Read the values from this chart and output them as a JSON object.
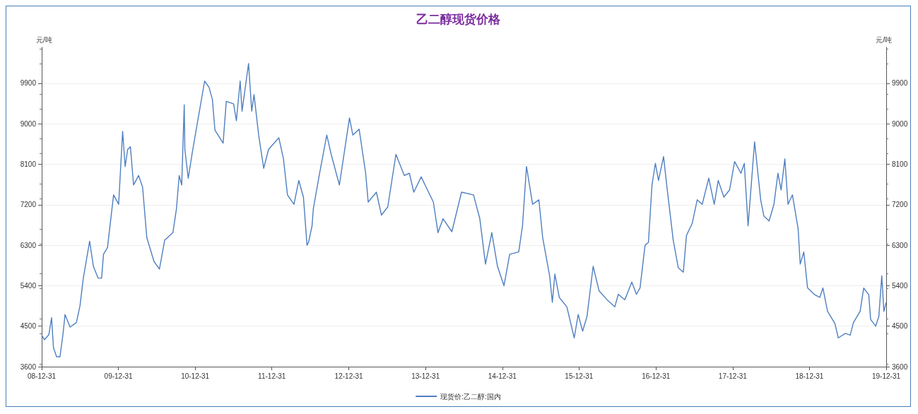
{
  "chart_data": {
    "type": "line",
    "title": "乙二醇现货价格",
    "ylabel": "元/吨",
    "y2label": "元/吨",
    "x": [
      "2008-12-31",
      "2009-01-13",
      "2009-02-03",
      "2009-02-16",
      "2009-02-25",
      "2009-03-12",
      "2009-03-28",
      "2009-04-12",
      "2009-04-21",
      "2009-05-15",
      "2009-06-14",
      "2009-07-01",
      "2009-07-17",
      "2009-08-16",
      "2009-09-03",
      "2009-09-25",
      "2009-10-12",
      "2009-10-21",
      "2009-11-09",
      "2009-12-08",
      "2010-01-01",
      "2010-01-20",
      "2010-02-01",
      "2010-02-13",
      "2010-02-26",
      "2010-03-13",
      "2010-04-06",
      "2010-04-25",
      "2010-05-15",
      "2010-06-18",
      "2010-07-14",
      "2010-08-08",
      "2010-09-16",
      "2010-10-03",
      "2010-10-16",
      "2010-10-28",
      "2010-11-09",
      "2010-11-12",
      "2010-11-28",
      "2010-12-18",
      "2011-01-08",
      "2011-02-14",
      "2011-03-07",
      "2011-03-23",
      "2011-04-04",
      "2011-05-13",
      "2011-05-28",
      "2011-07-02",
      "2011-07-15",
      "2011-08-02",
      "2011-08-11",
      "2011-09-11",
      "2011-09-26",
      "2011-10-07",
      "2011-10-29",
      "2011-11-22",
      "2011-12-15",
      "2012-02-02",
      "2012-02-24",
      "2012-03-14",
      "2012-04-14",
      "2012-05-07",
      "2012-05-29",
      "2012-06-15",
      "2012-06-22",
      "2012-07-09",
      "2012-07-15",
      "2012-08-12",
      "2012-09-17",
      "2012-10-08",
      "2012-11-16",
      "2013-01-03",
      "2013-01-19",
      "2013-02-18",
      "2013-03-21",
      "2013-04-02",
      "2013-05-11",
      "2013-06-04",
      "2013-07-04",
      "2013-08-12",
      "2013-09-21",
      "2013-10-15",
      "2013-11-05",
      "2013-12-10",
      "2014-02-06",
      "2014-02-28",
      "2014-03-24",
      "2014-05-05",
      "2014-06-20",
      "2014-08-16",
      "2014-09-15",
      "2014-10-12",
      "2014-11-11",
      "2014-12-08",
      "2015-01-08",
      "2015-02-04",
      "2015-03-19",
      "2015-04-06",
      "2015-04-25",
      "2015-05-24",
      "2015-06-23",
      "2015-07-11",
      "2015-08-13",
      "2015-08-26",
      "2015-09-07",
      "2015-09-28",
      "2015-11-03",
      "2015-12-08",
      "2015-12-27",
      "2016-01-17",
      "2016-02-07",
      "2016-03-07",
      "2016-04-04",
      "2016-05-12",
      "2016-06-18",
      "2016-07-05",
      "2016-07-27",
      "2016-08-05",
      "2016-09-07",
      "2016-09-29",
      "2016-10-16",
      "2016-11-09",
      "2016-11-25",
      "2016-12-12",
      "2016-12-28",
      "2017-01-12",
      "2017-02-05",
      "2017-02-20",
      "2017-03-23",
      "2017-04-16",
      "2017-05-10",
      "2017-05-25",
      "2017-06-21",
      "2017-07-15",
      "2017-08-08",
      "2017-09-08",
      "2017-10-04",
      "2017-10-23",
      "2017-11-19",
      "2017-12-16",
      "2018-01-09",
      "2018-02-08",
      "2018-02-24",
      "2018-03-14",
      "2018-04-14",
      "2018-05-13",
      "2018-05-28",
      "2018-06-22",
      "2018-07-15",
      "2018-08-03",
      "2018-08-18",
      "2018-09-05",
      "2018-09-20",
      "2018-10-11",
      "2018-11-07",
      "2018-11-17",
      "2018-12-04",
      "2018-12-22",
      "2019-01-25",
      "2019-02-18",
      "2019-03-05",
      "2019-03-27",
      "2019-05-01",
      "2019-05-17",
      "2019-06-20",
      "2019-07-13",
      "2019-07-28",
      "2019-08-29",
      "2019-09-15",
      "2019-10-09",
      "2019-10-18",
      "2019-11-11",
      "2019-11-26",
      "2019-12-10",
      "2019-12-20",
      "2019-12-31"
    ],
    "series": [
      {
        "name": "现货价:乙二醇:国内",
        "color": "#4f7fc0",
        "values": [
          4300,
          4200,
          4310,
          4690,
          4020,
          3820,
          3820,
          4350,
          4760,
          4480,
          4580,
          4950,
          5570,
          6390,
          5830,
          5570,
          5570,
          6100,
          6250,
          7420,
          7210,
          8830,
          8050,
          8430,
          8490,
          7640,
          7850,
          7590,
          6470,
          5940,
          5770,
          6410,
          6580,
          7110,
          7850,
          7640,
          9420,
          8430,
          7790,
          8380,
          8950,
          9950,
          9810,
          9540,
          8860,
          8570,
          9500,
          9440,
          9070,
          9950,
          9280,
          10340,
          9280,
          9650,
          8750,
          8010,
          8430,
          8690,
          8220,
          7420,
          7210,
          7740,
          7370,
          6300,
          6360,
          6730,
          7110,
          7850,
          8750,
          8320,
          7640,
          9130,
          8750,
          8880,
          7900,
          7260,
          7480,
          6970,
          7150,
          8320,
          7850,
          7900,
          7480,
          7820,
          7260,
          6580,
          6890,
          6600,
          7480,
          7420,
          6890,
          5880,
          6580,
          5830,
          5400,
          6100,
          6150,
          6730,
          8050,
          7210,
          7310,
          6470,
          5620,
          5030,
          5660,
          5140,
          4930,
          4240,
          4760,
          4390,
          4720,
          5830,
          5290,
          5090,
          4930,
          5210,
          5120,
          5090,
          5480,
          5210,
          5350,
          6300,
          6360,
          7640,
          8120,
          7740,
          8270,
          7640,
          6410,
          5800,
          5700,
          6520,
          6780,
          7310,
          7210,
          7790,
          7210,
          7740,
          7370,
          7530,
          8160,
          7900,
          8120,
          6730,
          8600,
          7310,
          6950,
          6840,
          7210,
          7900,
          7530,
          8220,
          7210,
          7420,
          6670,
          5880,
          6150,
          5350,
          5200,
          5140,
          5350,
          4830,
          4560,
          4240,
          4340,
          4300,
          4580,
          4830,
          5350,
          5200,
          4650,
          4500,
          4720,
          5620,
          4830,
          5030
        ]
      }
    ],
    "xlim": [
      "2008-12-31",
      "2019-12-31"
    ],
    "xticks": [
      {
        "value": "2008-12-31",
        "label": "08-12-31"
      },
      {
        "value": "2009-12-31",
        "label": "09-12-31"
      },
      {
        "value": "2010-12-31",
        "label": "10-12-31"
      },
      {
        "value": "2011-12-31",
        "label": "11-12-31"
      },
      {
        "value": "2012-12-31",
        "label": "12-12-31"
      },
      {
        "value": "2013-12-31",
        "label": "13-12-31"
      },
      {
        "value": "2014-12-31",
        "label": "14-12-31"
      },
      {
        "value": "2015-12-31",
        "label": "15-12-31"
      },
      {
        "value": "2016-12-31",
        "label": "16-12-31"
      },
      {
        "value": "2017-12-31",
        "label": "17-12-31"
      },
      {
        "value": "2018-12-31",
        "label": "18-12-31"
      },
      {
        "value": "2019-12-31",
        "label": "19-12-31"
      }
    ],
    "ylim": [
      3600,
      10700
    ],
    "yticks": [
      3600,
      4500,
      5400,
      6300,
      7200,
      8100,
      9000,
      9900
    ],
    "y2lim": [
      3600,
      10700
    ],
    "y2ticks": [
      3600,
      4500,
      5400,
      6300,
      7200,
      8100,
      9000,
      9900
    ],
    "grid": "y",
    "legend": "bottom",
    "marker": "none",
    "line_style": "solid"
  }
}
